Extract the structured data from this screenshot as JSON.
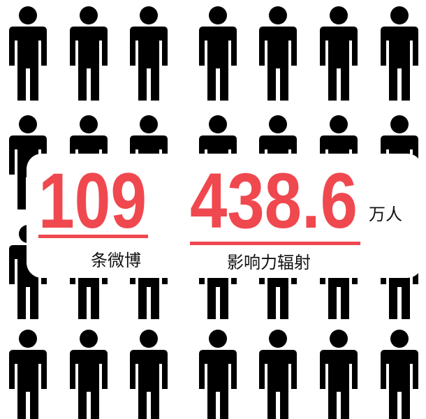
{
  "stats": [
    {
      "value": 109,
      "label": "条微博"
    },
    {
      "value": 438.6,
      "unit": "万人",
      "label": "影响力辐射"
    }
  ]
}
